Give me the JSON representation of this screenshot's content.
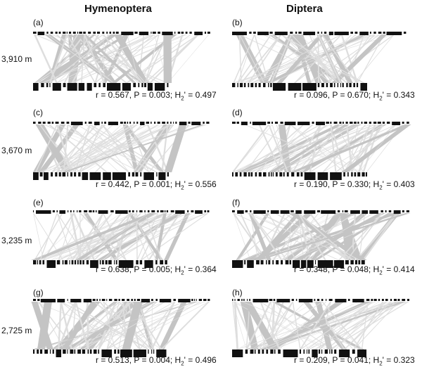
{
  "columns": [
    "Hymenoptera",
    "Diptera"
  ],
  "rows": [
    {
      "elevation": "3,910 m",
      "panels": [
        {
          "letter": "(a)",
          "r": "0.567",
          "P": "0.003",
          "H2": "0.497"
        },
        {
          "letter": "(b)",
          "r": "0.096",
          "P": "0.670",
          "H2": "0.343"
        }
      ]
    },
    {
      "elevation": "3,670 m",
      "panels": [
        {
          "letter": "(c)",
          "r": "0.442",
          "P": "0.001",
          "H2": "0.556"
        },
        {
          "letter": "(d)",
          "r": "0.190",
          "P": "0.330",
          "H2": "0.403"
        }
      ]
    },
    {
      "elevation": "3,235 m",
      "panels": [
        {
          "letter": "(e)",
          "r": "0.638",
          "P": "0.005",
          "H2": "0.364"
        },
        {
          "letter": "(f)",
          "r": "0.348",
          "P": "0.048",
          "H2": "0.414"
        }
      ]
    },
    {
      "elevation": "2,725 m",
      "panels": [
        {
          "letter": "(g)",
          "r": "0.513",
          "P": "0.004",
          "H2": "0.496"
        },
        {
          "letter": "(h)",
          "r": "0.209",
          "P": "0.041",
          "H2": "0.323"
        }
      ]
    }
  ],
  "colors": {
    "bars": "#111111",
    "links": "#c4c4c4",
    "links_light": "#dedede"
  }
}
